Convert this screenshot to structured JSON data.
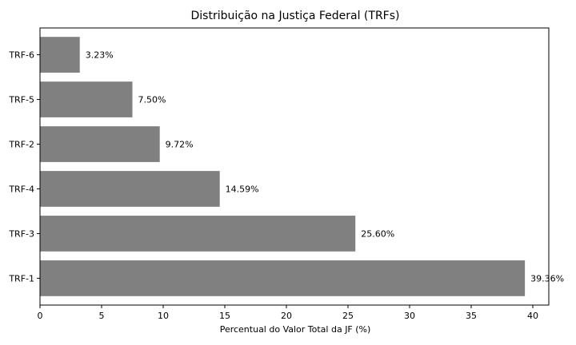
{
  "chart_data": {
    "type": "bar",
    "orientation": "horizontal",
    "title": "Distribuição na Justiça Federal (TRFs)",
    "xlabel": "Percentual do Valor Total da JF (%)",
    "ylabel": "",
    "categories": [
      "TRF-1",
      "TRF-3",
      "TRF-4",
      "TRF-2",
      "TRF-5",
      "TRF-6"
    ],
    "values": [
      39.36,
      25.6,
      14.59,
      9.72,
      7.5,
      3.23
    ],
    "data_labels": [
      "39.36%",
      "25.60%",
      "14.59%",
      "9.72%",
      "7.50%",
      "3.23%"
    ],
    "xlim": [
      0,
      41.3
    ],
    "xticks": [
      0,
      5,
      10,
      15,
      20,
      25,
      30,
      35,
      40
    ],
    "xtick_labels": [
      "0",
      "5",
      "10",
      "15",
      "20",
      "25",
      "30",
      "35",
      "40"
    ],
    "grid": false,
    "legend": "none",
    "bar_color": "#808080"
  }
}
